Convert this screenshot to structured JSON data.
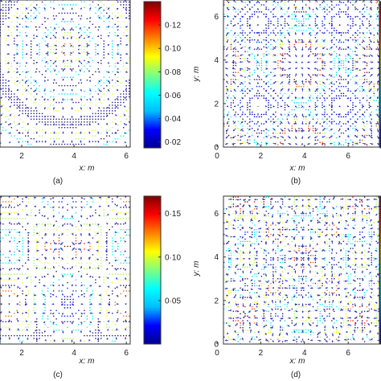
{
  "chart_data": [
    {
      "type": "heatmap",
      "panel_label": "(a)",
      "xlabel": "x: m",
      "ylabel": "",
      "x_ticks": [
        "2",
        "4",
        "6"
      ],
      "y_ticks": [],
      "xlim": [
        0,
        7.5
      ],
      "ylim": [
        0,
        7.5
      ],
      "colorbar": {
        "ticks": [
          "0·12",
          "0·10",
          "0·08",
          "0·06",
          "0·04",
          "0·02"
        ],
        "values": [
          0.12,
          0.1,
          0.08,
          0.06,
          0.04,
          0.02
        ],
        "range": [
          0.015,
          0.14
        ]
      },
      "pattern": "concentric rings centred at (3.75, 3.75) with radial vector field",
      "grid": false
    },
    {
      "type": "heatmap",
      "panel_label": "(b)",
      "xlabel": "x: m",
      "ylabel": "y: m",
      "x_ticks": [
        "0",
        "2",
        "4",
        "6"
      ],
      "y_ticks": [
        "0",
        "2",
        "4",
        "6"
      ],
      "xlim": [
        0,
        7.5
      ],
      "ylim": [
        0,
        7.5
      ],
      "pattern": "rounded-square rings with corner vortices",
      "grid": false
    },
    {
      "type": "heatmap",
      "panel_label": "(c)",
      "xlabel": "x: m",
      "ylabel": "",
      "x_ticks": [
        "2",
        "4",
        "6"
      ],
      "y_ticks": [],
      "xlim": [
        0,
        7.5
      ],
      "ylim": [
        0,
        7.5
      ],
      "colorbar": {
        "ticks": [
          "0·15",
          "0·10",
          "0·05"
        ],
        "values": [
          0.15,
          0.1,
          0.05
        ],
        "range": [
          0.0,
          0.17
        ]
      },
      "pattern": "four-lobed cross pattern with cells",
      "grid": false
    },
    {
      "type": "heatmap",
      "panel_label": "(d)",
      "xlabel": "x: m",
      "ylabel": "y: m",
      "x_ticks": [
        "0",
        "2",
        "4",
        "6"
      ],
      "y_ticks": [
        "0",
        "2",
        "4",
        "6"
      ],
      "xlim": [
        0,
        7.5
      ],
      "ylim": [
        0,
        7.5
      ],
      "pattern": "grid of cells with central double-loop and corner diagonals",
      "grid": false
    }
  ],
  "colors": {
    "colormap": [
      "#00008f",
      "#0000ff",
      "#00bfff",
      "#00ffff",
      "#7fff7f",
      "#ffff00",
      "#ff8000",
      "#ff0000",
      "#800000"
    ],
    "arrow": "#2233bb",
    "contour_dark": "#2a1a8a",
    "axis": "#333333"
  }
}
